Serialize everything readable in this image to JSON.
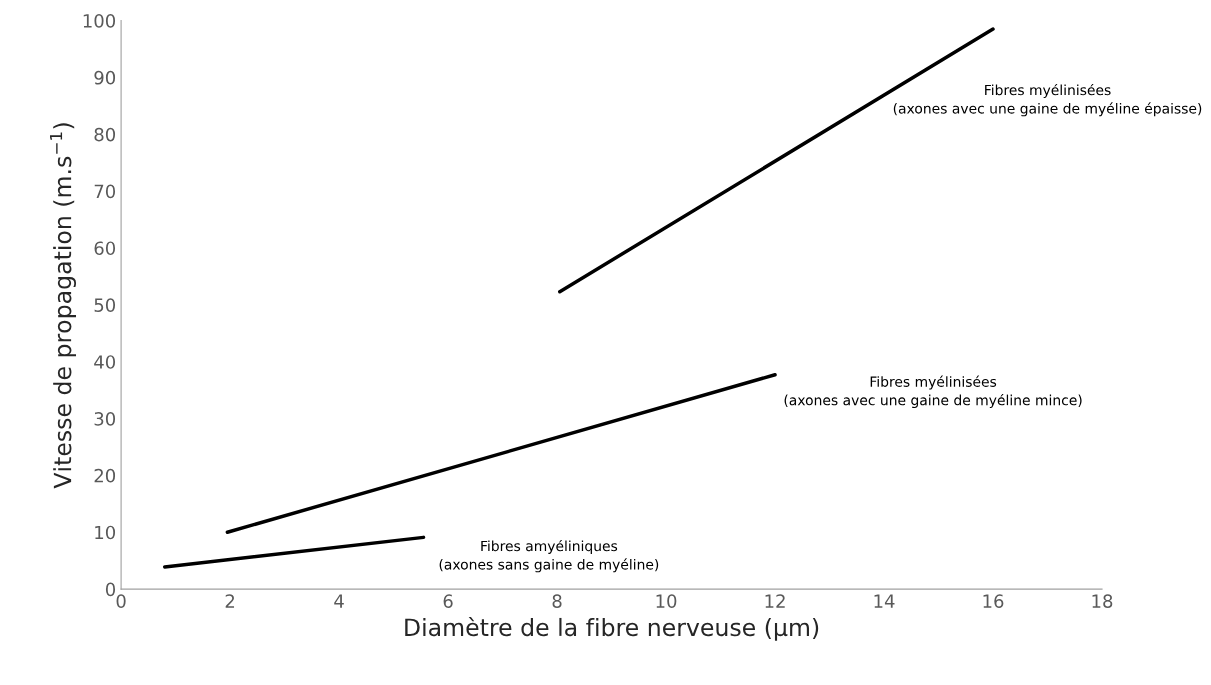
{
  "chart_data": {
    "type": "line",
    "xlabel": "Diamètre de la fibre nerveuse (µm)",
    "ylabel": "Vitesse de propagation (m.s$^{−1}$)",
    "series": [
      {
        "name": "Fibres amyéliniques\n(axones sans gaine de myéline)",
        "color": "#000000",
        "x": [
          0.8,
          5.55
        ],
        "values": [
          3.9,
          9.1
        ]
      },
      {
        "name": "Fibres myélinisées\n(axones avec une gaine de myéline mince)",
        "color": "#000000",
        "x": [
          1.95,
          12.0
        ],
        "values": [
          10.0,
          37.7
        ]
      },
      {
        "name": "Fibres myélinisées\n(axones avec une gaine de myéline épaisse)",
        "color": "#000000",
        "x": [
          8.05,
          16.0
        ],
        "values": [
          52.3,
          98.5
        ]
      }
    ],
    "xlim": [
      0,
      18
    ],
    "xticks": [
      0,
      2,
      4,
      6,
      8,
      10,
      12,
      14,
      16,
      18
    ],
    "ylim": [
      0,
      100
    ],
    "yticks": [
      0,
      10,
      20,
      30,
      40,
      50,
      60,
      70,
      80,
      90,
      100
    ],
    "grid": false,
    "legend": false,
    "line_style": "solid",
    "marker": "none"
  }
}
